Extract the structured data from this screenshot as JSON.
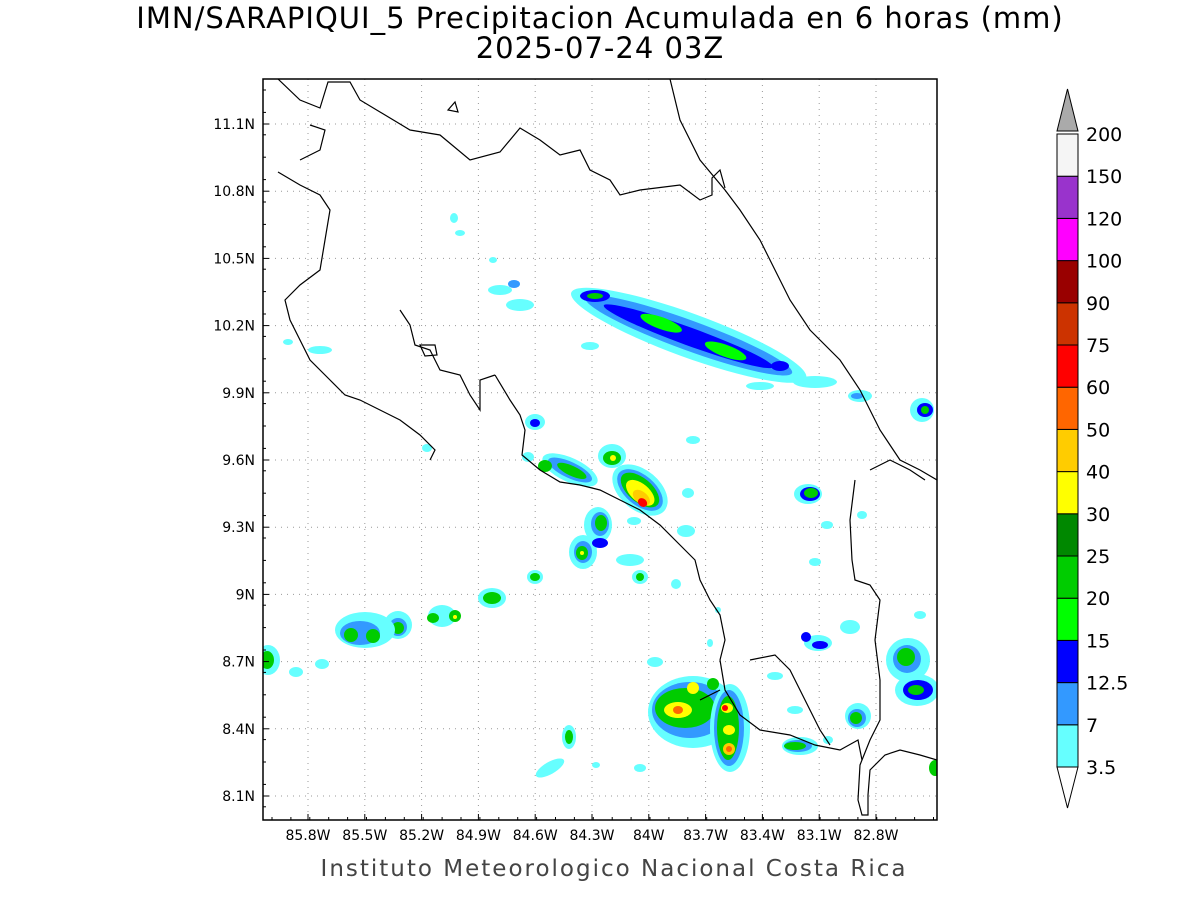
{
  "title": {
    "line1": "IMN/SARAPIQUI_5 Precipitacion Acumulada en 6 horas (mm)",
    "line2": "2025-07-24 03Z"
  },
  "footer": "Instituto Meteorologico Nacional Costa Rica",
  "map": {
    "lon_ticks": [
      "85.8W",
      "85.5W",
      "85.2W",
      "84.9W",
      "84.6W",
      "84.3W",
      "84W",
      "83.7W",
      "83.4W",
      "83.1W",
      "82.8W"
    ],
    "lat_ticks": [
      "11.1N",
      "10.8N",
      "10.5N",
      "10.2N",
      "9.9N",
      "9.6N",
      "9.3N",
      "9N",
      "8.7N",
      "8.4N",
      "8.1N"
    ],
    "grid": true
  },
  "colorbar": {
    "labels": [
      "3.5",
      "7",
      "12.5",
      "15",
      "20",
      "25",
      "30",
      "40",
      "50",
      "60",
      "75",
      "90",
      "100",
      "120",
      "150",
      "200"
    ],
    "colors": {
      "c3_5": "#66ffff",
      "c7": "#3399ff",
      "c12_5": "#0000ff",
      "c15": "#00ff00",
      "c20": "#00cc00",
      "c25": "#008800",
      "c30": "#ffff00",
      "c40": "#ffcc00",
      "c50": "#ff6600",
      "c60": "#ff0000",
      "c75": "#cc3300",
      "c90": "#990000",
      "c100": "#ff00ff",
      "c120": "#9933cc",
      "c150": "#f5f5f5",
      "c200": "#aaaaaa"
    }
  }
}
